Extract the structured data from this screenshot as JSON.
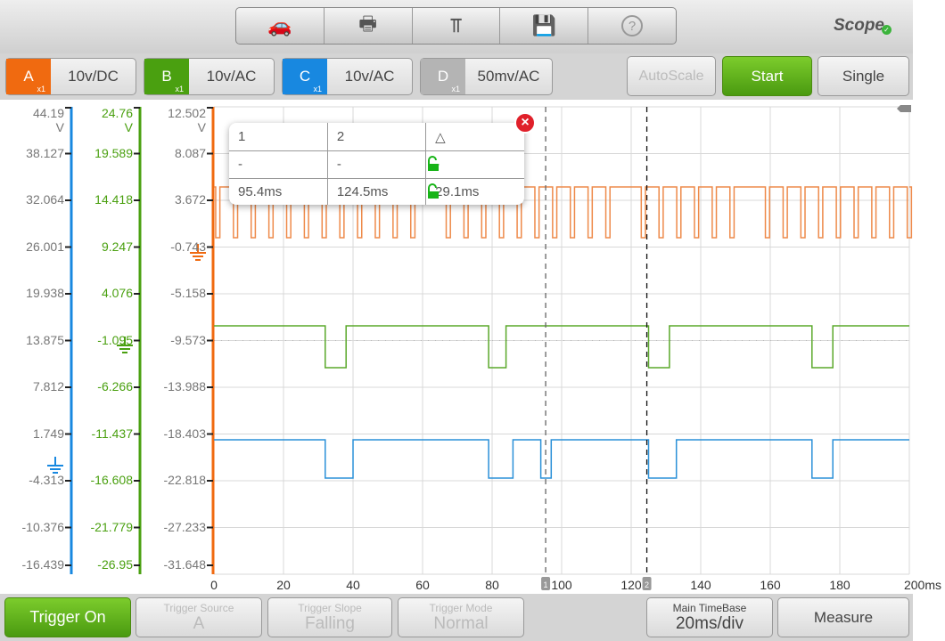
{
  "toolbar": {
    "icons": [
      "vehicle-settings-icon",
      "printer-icon",
      "marker-icon",
      "save-icon",
      "help-icon"
    ],
    "brand": "Scope"
  },
  "channels": [
    {
      "id": "A",
      "probe": "x1",
      "value": "10v/DC",
      "color": "#f06a10"
    },
    {
      "id": "B",
      "probe": "x1",
      "value": "10v/AC",
      "color": "#4aa010"
    },
    {
      "id": "C",
      "probe": "x1",
      "value": "10v/AC",
      "color": "#1888e0"
    },
    {
      "id": "D",
      "probe": "x1",
      "value": "50mv/AC",
      "color": "#aaaaaa"
    }
  ],
  "actions": {
    "autoscale": "AutoScale",
    "start": "Start",
    "single": "Single"
  },
  "axes": {
    "unit": "V",
    "c_ticks": [
      "44.19",
      "38.127",
      "32.064",
      "26.001",
      "19.938",
      "13.875",
      "7.812",
      "1.749",
      "-4.313",
      "-10.376",
      "-16.439"
    ],
    "b_ticks": [
      "24.76",
      "19.589",
      "14.418",
      "9.247",
      "4.076",
      "-1.095",
      "-6.266",
      "-11.437",
      "-16.608",
      "-21.779",
      "-26.95"
    ],
    "a_ticks": [
      "12.502",
      "8.087",
      "3.672",
      "-0.743",
      "-5.158",
      "-9.573",
      "-13.988",
      "-18.403",
      "-22.818",
      "-27.233",
      "-31.648"
    ],
    "x_ticks": [
      "0",
      "20",
      "40",
      "60",
      "80",
      "100",
      "120",
      "140",
      "160",
      "180",
      "200ms"
    ]
  },
  "cursors": {
    "t1_ms": 95.4,
    "t2_ms": 124.5,
    "t1_label": "1",
    "t2_label": "2"
  },
  "measure_table": {
    "headers": [
      "1",
      "2",
      "△"
    ],
    "rows": [
      [
        "-",
        "-",
        "-"
      ],
      [
        "95.4ms",
        "124.5ms",
        "29.1ms"
      ]
    ]
  },
  "bottom": {
    "trigger_on": "Trigger On",
    "trigger_source": {
      "label": "Trigger Source",
      "value": "A"
    },
    "trigger_slope": {
      "label": "Trigger Slope",
      "value": "Falling"
    },
    "trigger_mode": {
      "label": "Trigger Mode",
      "value": "Normal"
    },
    "timebase": {
      "label": "Main TimeBase",
      "value": "20ms/div"
    },
    "measure": "Measure"
  }
}
